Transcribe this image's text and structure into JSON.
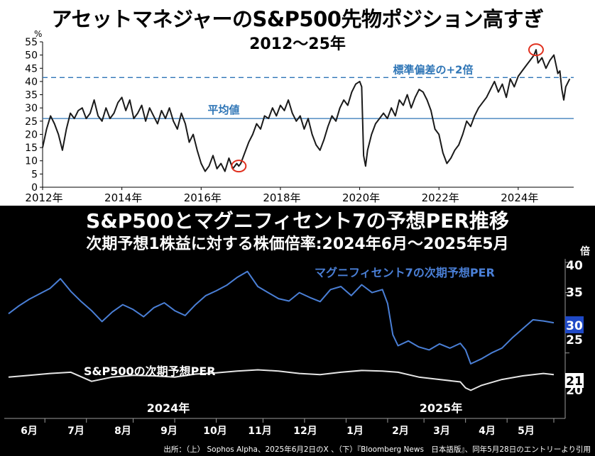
{
  "top": {
    "title": "アセットマネジャーのS&P500先物ポジション高すぎ",
    "subtitle": "2012～25年"
  },
  "bottom": {
    "title": "S&P500とマグニフィセント7の予想PER推移",
    "subtitle": "次期予想1株益に対する株価倍率:2024年6月～2025年5月"
  },
  "source": "出所：（上） Sophos Alpha、2025年6月2日のX 、（下）『Bloomberg News　日本語版』、同年5月28日のエントリーより引用",
  "colors": {
    "top_line": "#1a1a1a",
    "ref_line": "#2e75b6",
    "ref_label": "#2e75b6",
    "highlight_circle": "#e0301e",
    "mag7_line": "#4a7fd6",
    "sp500_line": "#e6e6e6",
    "badge_mag7": "#1f49c6",
    "badge_sp500": "#ffffff"
  },
  "chart_data": [
    {
      "type": "line",
      "unit_label": "%",
      "ylim": [
        0,
        55
      ],
      "yticks": [
        0,
        5,
        10,
        15,
        20,
        25,
        30,
        35,
        40,
        45,
        50,
        55
      ],
      "xlim": [
        2012.0,
        2025.4
      ],
      "xticks": [
        2012,
        2014,
        2016,
        2018,
        2020,
        2022,
        2024
      ],
      "xtick_labels": [
        "2012年",
        "2014年",
        "2016年",
        "2018年",
        "2020年",
        "2022年",
        "2024年"
      ],
      "grid": false,
      "reference_lines": [
        {
          "label": "標準偏差の+2倍",
          "value": 41.5,
          "style": "dashed"
        },
        {
          "label": "平均値",
          "value": 26,
          "style": "solid"
        }
      ],
      "highlights": [
        {
          "x": 2016.95,
          "y": 8
        },
        {
          "x": 2024.45,
          "y": 52
        }
      ],
      "series": [
        {
          "x": [
            2012.0,
            2012.1,
            2012.2,
            2012.3,
            2012.4,
            2012.5,
            2012.6,
            2012.7,
            2012.8,
            2012.9,
            2013.0,
            2013.1,
            2013.2,
            2013.3,
            2013.4,
            2013.5,
            2013.6,
            2013.7,
            2013.8,
            2013.9,
            2014.0,
            2014.1,
            2014.2,
            2014.3,
            2014.4,
            2014.5,
            2014.6,
            2014.7,
            2014.8,
            2014.9,
            2015.0,
            2015.1,
            2015.2,
            2015.3,
            2015.4,
            2015.5,
            2015.6,
            2015.7,
            2015.8,
            2015.9,
            2016.0,
            2016.1,
            2016.2,
            2016.3,
            2016.4,
            2016.5,
            2016.6,
            2016.7,
            2016.8,
            2016.9,
            2016.95,
            2017.0,
            2017.1,
            2017.2,
            2017.3,
            2017.4,
            2017.5,
            2017.6,
            2017.7,
            2017.8,
            2017.9,
            2018.0,
            2018.1,
            2018.2,
            2018.3,
            2018.4,
            2018.5,
            2018.6,
            2018.7,
            2018.8,
            2018.9,
            2019.0,
            2019.1,
            2019.2,
            2019.3,
            2019.4,
            2019.5,
            2019.6,
            2019.7,
            2019.8,
            2019.9,
            2020.0,
            2020.05,
            2020.1,
            2020.15,
            2020.2,
            2020.3,
            2020.4,
            2020.5,
            2020.6,
            2020.7,
            2020.8,
            2020.9,
            2021.0,
            2021.1,
            2021.2,
            2021.3,
            2021.4,
            2021.5,
            2021.6,
            2021.7,
            2021.8,
            2021.9,
            2022.0,
            2022.1,
            2022.2,
            2022.3,
            2022.4,
            2022.5,
            2022.6,
            2022.7,
            2022.8,
            2022.9,
            2023.0,
            2023.1,
            2023.2,
            2023.3,
            2023.4,
            2023.5,
            2023.6,
            2023.7,
            2023.8,
            2023.9,
            2024.0,
            2024.1,
            2024.2,
            2024.3,
            2024.4,
            2024.45,
            2024.5,
            2024.6,
            2024.7,
            2024.8,
            2024.9,
            2025.0,
            2025.05,
            2025.1,
            2025.15,
            2025.2,
            2025.3
          ],
          "y": [
            15,
            22,
            27,
            24,
            20,
            14,
            22,
            28,
            26,
            29,
            30,
            26,
            28,
            33,
            27,
            25,
            30,
            26,
            28,
            32,
            34,
            29,
            33,
            26,
            28,
            31,
            25,
            30,
            27,
            24,
            29,
            26,
            30,
            25,
            22,
            28,
            24,
            17,
            20,
            14,
            9,
            6,
            8,
            12,
            7,
            9,
            6,
            11,
            7,
            9,
            8,
            9,
            13,
            17,
            20,
            24,
            22,
            27,
            26,
            30,
            27,
            31,
            29,
            33,
            28,
            25,
            27,
            22,
            26,
            20,
            16,
            14,
            18,
            23,
            27,
            25,
            30,
            33,
            31,
            36,
            39,
            40,
            38,
            12,
            8,
            14,
            20,
            24,
            26,
            28,
            26,
            30,
            27,
            33,
            31,
            35,
            30,
            34,
            37,
            36,
            33,
            29,
            22,
            20,
            13,
            9,
            11,
            14,
            16,
            20,
            25,
            23,
            27,
            30,
            32,
            34,
            37,
            40,
            36,
            39,
            34,
            41,
            38,
            42,
            44,
            46,
            48,
            50,
            52,
            47,
            49,
            45,
            48,
            50,
            43,
            44,
            37,
            33,
            38,
            41
          ]
        }
      ]
    },
    {
      "type": "line",
      "unit_label": "倍",
      "ylim": [
        18.5,
        40
      ],
      "yticks": [
        20,
        25,
        30,
        35,
        40
      ],
      "xlim": [
        2024.39,
        2025.44
      ],
      "month_labels": [
        "6月",
        "7月",
        "8月",
        "9月",
        "10月",
        "11月",
        "12月",
        "1月",
        "2月",
        "3月",
        "4月",
        "5月"
      ],
      "year_labels": [
        "2024年",
        "2025年"
      ],
      "end_badges": [
        "30",
        "21"
      ],
      "series": [
        {
          "name": "マグニフィセント7の次期予想PER",
          "x": [
            2024.39,
            2024.41,
            2024.43,
            2024.45,
            2024.47,
            2024.49,
            2024.51,
            2024.53,
            2024.55,
            2024.57,
            2024.59,
            2024.61,
            2024.63,
            2024.65,
            2024.67,
            2024.69,
            2024.71,
            2024.73,
            2024.75,
            2024.77,
            2024.79,
            2024.81,
            2024.83,
            2024.85,
            2024.87,
            2024.89,
            2024.91,
            2024.93,
            2024.95,
            2024.97,
            2024.99,
            2025.01,
            2025.03,
            2025.05,
            2025.07,
            2025.09,
            2025.11,
            2025.12,
            2025.13,
            2025.14,
            2025.16,
            2025.18,
            2025.2,
            2025.22,
            2025.24,
            2025.26,
            2025.27,
            2025.28,
            2025.3,
            2025.32,
            2025.34,
            2025.36,
            2025.38,
            2025.4,
            2025.42,
            2025.44
          ],
          "y": [
            31.5,
            32.8,
            33.9,
            34.8,
            35.7,
            37.3,
            35.2,
            33.5,
            32.0,
            30.2,
            31.8,
            33.0,
            32.2,
            31.0,
            32.5,
            33.3,
            32.0,
            31.2,
            33.0,
            34.5,
            35.3,
            36.2,
            37.5,
            38.5,
            36.0,
            35.0,
            34.0,
            33.6,
            35.0,
            34.2,
            33.5,
            35.5,
            36.0,
            34.5,
            36.3,
            35.0,
            35.5,
            33.2,
            28.0,
            26.2,
            27.0,
            26.0,
            25.5,
            26.5,
            25.8,
            26.6,
            25.5,
            23.2,
            24.0,
            25.0,
            25.8,
            27.5,
            29.0,
            30.5,
            30.3,
            30.0
          ]
        },
        {
          "name": "S&P500の次期予想PER",
          "x": [
            2024.39,
            2024.43,
            2024.47,
            2024.51,
            2024.55,
            2024.59,
            2024.63,
            2024.67,
            2024.71,
            2024.75,
            2024.79,
            2024.83,
            2024.87,
            2024.91,
            2024.95,
            2024.99,
            2025.03,
            2025.07,
            2025.11,
            2025.14,
            2025.18,
            2025.22,
            2025.26,
            2025.27,
            2025.28,
            2025.3,
            2025.34,
            2025.38,
            2025.42,
            2025.44
          ],
          "y": [
            21.0,
            21.3,
            21.6,
            21.8,
            20.3,
            21.0,
            21.3,
            21.2,
            21.0,
            21.5,
            21.7,
            22.0,
            22.2,
            22.0,
            21.6,
            21.4,
            21.8,
            22.1,
            22.0,
            21.8,
            21.0,
            20.6,
            20.2,
            19.2,
            18.8,
            19.6,
            20.6,
            21.2,
            21.6,
            21.4
          ]
        }
      ]
    }
  ]
}
